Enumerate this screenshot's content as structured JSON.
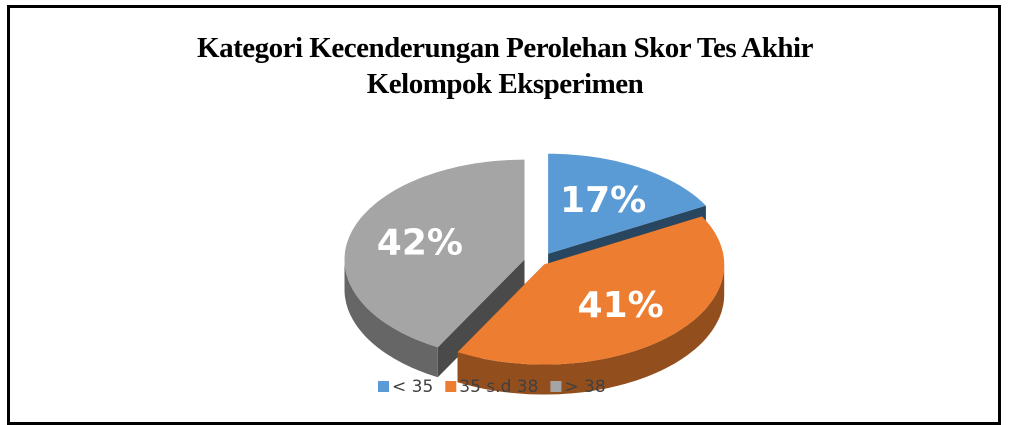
{
  "chart_data": {
    "type": "pie",
    "title": "Kategori Kecenderungan Perolehan Skor Tes Akhir Kelompok Eksperimen",
    "categories": [
      "< 35",
      "35 s.d 38",
      "> 38"
    ],
    "values": [
      17,
      41,
      42
    ],
    "value_labels": [
      "17%",
      "41%",
      "42%"
    ],
    "colors": [
      "#5b9bd5",
      "#ed7d31",
      "#a5a5a5"
    ],
    "legend": "bottom"
  }
}
